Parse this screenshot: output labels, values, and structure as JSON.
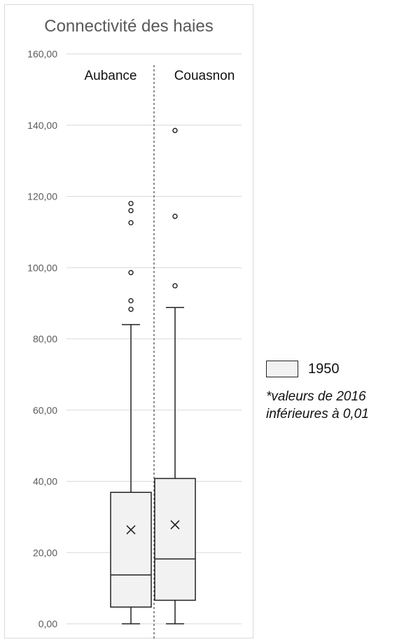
{
  "chart_data": {
    "type": "boxplot",
    "title": "Connectivité des haies",
    "ylim": [
      0,
      160
    ],
    "yticks": [
      0,
      20,
      40,
      60,
      80,
      100,
      120,
      140,
      160
    ],
    "ytick_labels": [
      "0,00",
      "20,00",
      "40,00",
      "60,00",
      "80,00",
      "100,00",
      "120,00",
      "140,00",
      "160,00"
    ],
    "grid": true,
    "legend": {
      "position": "right",
      "entries": [
        "1950"
      ]
    },
    "groups": [
      {
        "name": "Aubance",
        "series": "1950",
        "min": 0,
        "q1": 4.7,
        "median": 13.7,
        "q3": 36.9,
        "max": 84,
        "mean": 26.4,
        "outliers": [
          88.3,
          90.7,
          98.6,
          112.6,
          116,
          118
        ]
      },
      {
        "name": "Couasnon",
        "series": "1950",
        "min": 0,
        "q1": 6.6,
        "median": 18.2,
        "q3": 40.8,
        "max": 88.8,
        "mean": 27.8,
        "outliers": [
          94.9,
          114.4,
          138.5
        ]
      }
    ]
  },
  "footnote": "*valeurs de 2016 inférieures à 0,01"
}
